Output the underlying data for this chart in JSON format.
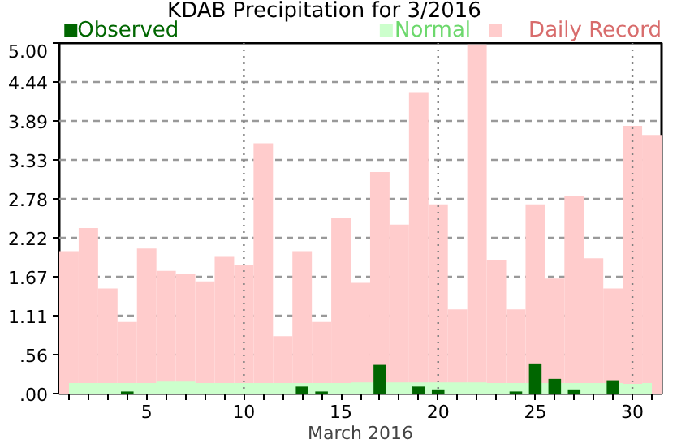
{
  "chart_data": {
    "type": "bar",
    "title": "KDAB Precipitation for 3/2016",
    "xlabel": "March 2016",
    "x": [
      1,
      2,
      3,
      4,
      5,
      6,
      7,
      8,
      9,
      10,
      11,
      12,
      13,
      14,
      15,
      16,
      17,
      18,
      19,
      20,
      21,
      22,
      23,
      24,
      25,
      26,
      27,
      28,
      29,
      30,
      31
    ],
    "series": [
      {
        "name": "Observed",
        "color": "#006600",
        "values": [
          0,
          0,
          0,
          0.03,
          0,
          0,
          0,
          0,
          0,
          0,
          0,
          0,
          0.1,
          0.03,
          0,
          0,
          0.41,
          0,
          0.1,
          0.06,
          0,
          0,
          0,
          0.03,
          0.43,
          0.21,
          0.06,
          0,
          0.19,
          0,
          0
        ]
      },
      {
        "name": "Normal",
        "type": "area",
        "color": "#ccffcc",
        "values": [
          0.15,
          0.15,
          0.15,
          0.15,
          0.15,
          0.17,
          0.17,
          0.15,
          0.15,
          0.15,
          0.15,
          0.15,
          0.15,
          0.15,
          0.15,
          0.16,
          null,
          0.16,
          0.16,
          0.16,
          0.16,
          0.16,
          0.15,
          0.15,
          null,
          0.15,
          0.15,
          0.15,
          0.15,
          0.14,
          0.15
        ]
      },
      {
        "name": "Daily Record",
        "color": "#ffcccc",
        "values": [
          2.03,
          2.36,
          1.5,
          1.02,
          2.07,
          1.75,
          1.7,
          1.6,
          1.95,
          1.84,
          3.57,
          0.82,
          2.03,
          1.02,
          2.51,
          1.58,
          3.16,
          2.41,
          4.3,
          2.7,
          1.2,
          4.98,
          1.91,
          1.2,
          2.7,
          1.64,
          2.82,
          1.93,
          1.5,
          3.82,
          3.69
        ]
      }
    ],
    "xlim": [
      0.5,
      31.5
    ],
    "xticks": [
      {
        "value": 1,
        "label": null
      },
      {
        "value": 2,
        "label": null
      },
      {
        "value": 3,
        "label": null
      },
      {
        "value": 4,
        "label": null
      },
      5,
      {
        "value": 6,
        "label": null
      },
      {
        "value": 7,
        "label": null
      },
      {
        "value": 8,
        "label": null
      },
      {
        "value": 9,
        "label": null
      },
      10,
      {
        "value": 11,
        "label": null
      },
      {
        "value": 12,
        "label": null
      },
      {
        "value": 13,
        "label": null
      },
      {
        "value": 14,
        "label": null
      },
      15,
      {
        "value": 16,
        "label": null
      },
      {
        "value": 17,
        "label": null
      },
      {
        "value": 18,
        "label": null
      },
      {
        "value": 19,
        "label": null
      },
      20,
      {
        "value": 21,
        "label": null
      },
      {
        "value": 22,
        "label": null
      },
      {
        "value": 23,
        "label": null
      },
      {
        "value": 24,
        "label": null
      },
      25,
      {
        "value": 26,
        "label": null
      },
      {
        "value": 27,
        "label": null
      },
      {
        "value": 28,
        "label": null
      },
      {
        "value": 29,
        "label": null
      },
      30,
      {
        "value": 31,
        "label": null
      }
    ],
    "ylim": [
      0,
      5
    ],
    "yticks": [
      {
        "value": 0,
        "label": ".00"
      },
      {
        "value": 0.56,
        "label": ".56"
      },
      {
        "value": 1.11,
        "label": "1.11"
      },
      {
        "value": 1.67,
        "label": "1.67"
      },
      {
        "value": 2.22,
        "label": "2.22"
      },
      {
        "value": 2.78,
        "label": "2.78"
      },
      {
        "value": 3.33,
        "label": "3.33"
      },
      {
        "value": 3.89,
        "label": "3.89"
      },
      {
        "value": 4.44,
        "label": "4.44"
      },
      {
        "value": 5,
        "label": "5.00"
      }
    ],
    "ref_lines": [
      {
        "axis": "x",
        "value": 10,
        "label": null,
        "color": "#808080",
        "line_style": "dotted"
      },
      {
        "axis": "x",
        "value": 20,
        "label": null,
        "color": "#808080",
        "line_style": "dotted"
      },
      {
        "axis": "x",
        "value": 30,
        "label": null,
        "color": "#808080",
        "line_style": "dotted"
      }
    ],
    "grid": "y",
    "legend": "top"
  }
}
